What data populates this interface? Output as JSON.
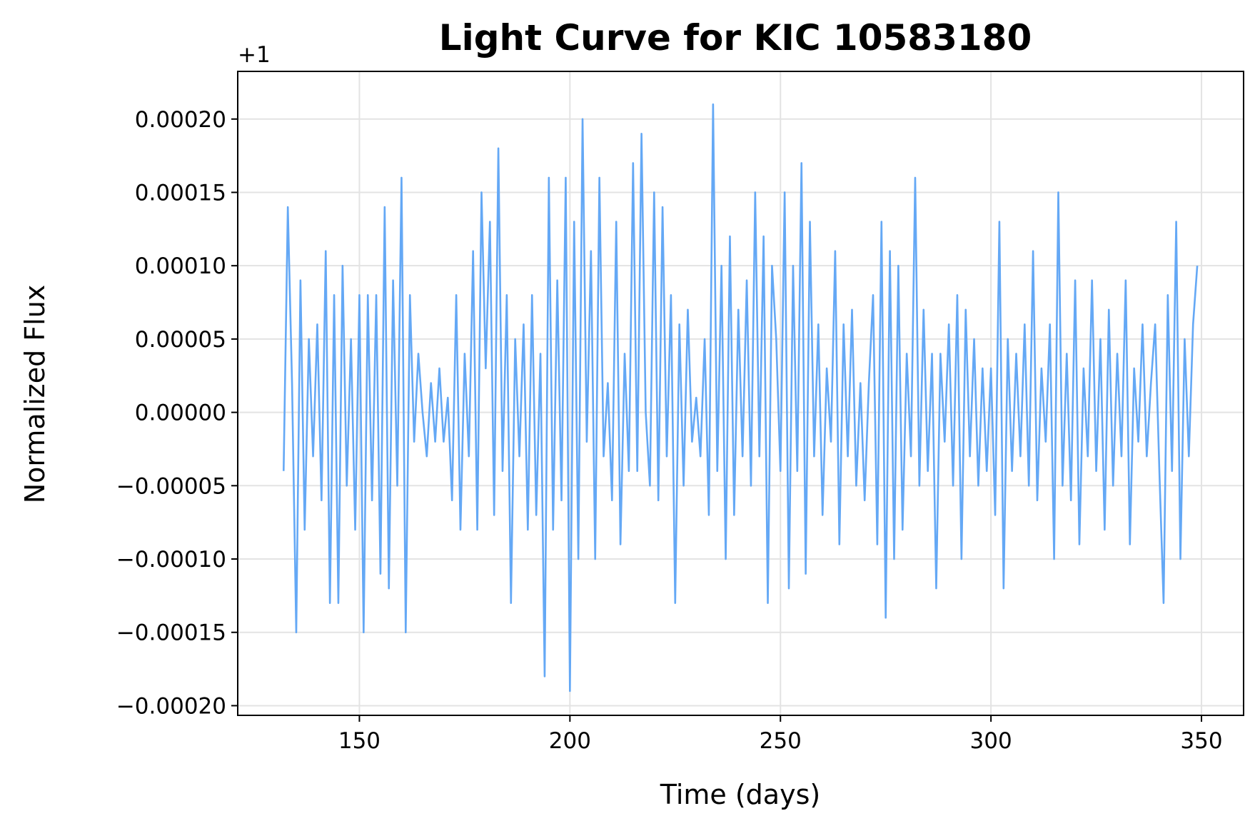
{
  "chart_data": {
    "type": "line",
    "title": "Light Curve for KIC 10583180",
    "x_label": "Time (days)",
    "y_label": "Normalized Flux",
    "y_offset_label": "+1",
    "grid": true,
    "xlim": [
      121.1,
      360
    ],
    "xticks": [
      150,
      200,
      250,
      300,
      350
    ],
    "ylim": [
      -0.0002066,
      0.0002325
    ],
    "yticks": [
      {
        "value": -0.0002,
        "label": "−0.00020"
      },
      {
        "value": -0.00015,
        "label": "−0.00015"
      },
      {
        "value": -0.0001,
        "label": "−0.00010"
      },
      {
        "value": -5e-05,
        "label": "−0.00005"
      },
      {
        "value": 0,
        "label": "0.00000"
      },
      {
        "value": 5e-05,
        "label": "0.00005"
      },
      {
        "value": 0.0001,
        "label": "0.00010"
      },
      {
        "value": 0.00015,
        "label": "0.00015"
      },
      {
        "value": 0.0002,
        "label": "0.00020"
      }
    ],
    "x": [
      132,
      133,
      134,
      135,
      136,
      137,
      138,
      139,
      140,
      141,
      142,
      143,
      144,
      145,
      146,
      147,
      148,
      149,
      150,
      151,
      152,
      153,
      154,
      155,
      156,
      157,
      158,
      159,
      160,
      161,
      162,
      163,
      164,
      165,
      166,
      167,
      168,
      169,
      170,
      171,
      172,
      173,
      174,
      175,
      176,
      177,
      178,
      179,
      180,
      181,
      182,
      183,
      184,
      185,
      186,
      187,
      188,
      189,
      190,
      191,
      192,
      193,
      194,
      195,
      196,
      197,
      198,
      199,
      200,
      201,
      202,
      203,
      204,
      205,
      206,
      207,
      208,
      209,
      210,
      211,
      212,
      213,
      214,
      215,
      216,
      217,
      218,
      219,
      220,
      221,
      222,
      223,
      224,
      225,
      226,
      227,
      228,
      229,
      230,
      231,
      232,
      233,
      234,
      235,
      236,
      237,
      238,
      239,
      240,
      241,
      242,
      243,
      244,
      245,
      246,
      247,
      248,
      249,
      250,
      251,
      252,
      253,
      254,
      255,
      256,
      257,
      258,
      259,
      260,
      261,
      262,
      263,
      264,
      265,
      266,
      267,
      268,
      269,
      270,
      271,
      272,
      273,
      274,
      275,
      276,
      277,
      278,
      279,
      280,
      281,
      282,
      283,
      284,
      285,
      286,
      287,
      288,
      289,
      290,
      291,
      292,
      293,
      294,
      295,
      296,
      297,
      298,
      299,
      300,
      301,
      302,
      303,
      304,
      305,
      306,
      307,
      308,
      309,
      310,
      311,
      312,
      313,
      314,
      315,
      316,
      317,
      318,
      319,
      320,
      321,
      322,
      323,
      324,
      325,
      326,
      327,
      328,
      329,
      330,
      331,
      332,
      333,
      334,
      335,
      336,
      337,
      338,
      339,
      340,
      341,
      342,
      343,
      344,
      345,
      346,
      347,
      348,
      349
    ],
    "series": [
      {
        "color": "#64a8f5",
        "values": [
          -4e-05,
          0.00014,
          2e-05,
          -0.00015,
          9e-05,
          -8e-05,
          5e-05,
          -3e-05,
          6e-05,
          -6e-05,
          0.00011,
          -0.00013,
          8e-05,
          -0.00013,
          0.0001,
          -5e-05,
          5e-05,
          -8e-05,
          8e-05,
          -0.00015,
          8e-05,
          -6e-05,
          8e-05,
          -0.00011,
          0.00014,
          -0.00012,
          9e-05,
          -5e-05,
          0.00016,
          -0.00015,
          8e-05,
          -2e-05,
          4e-05,
          0,
          -3e-05,
          2e-05,
          -2e-05,
          3e-05,
          -2e-05,
          1e-05,
          -6e-05,
          8e-05,
          -8e-05,
          4e-05,
          -3e-05,
          0.00011,
          -8e-05,
          0.00015,
          3e-05,
          0.00013,
          -7e-05,
          0.00018,
          -4e-05,
          8e-05,
          -0.00013,
          5e-05,
          -3e-05,
          6e-05,
          -8e-05,
          8e-05,
          -7e-05,
          4e-05,
          -0.00018,
          0.00016,
          -8e-05,
          9e-05,
          -6e-05,
          0.00016,
          -0.00019,
          0.00013,
          -0.0001,
          0.0002,
          -2e-05,
          0.00011,
          -0.0001,
          0.00016,
          -3e-05,
          2e-05,
          -6e-05,
          0.00013,
          -9e-05,
          4e-05,
          -4e-05,
          0.00017,
          -4e-05,
          0.00019,
          0,
          -5e-05,
          0.00015,
          -6e-05,
          0.00014,
          -3e-05,
          8e-05,
          -0.00013,
          6e-05,
          -5e-05,
          7e-05,
          -2e-05,
          1e-05,
          -3e-05,
          5e-05,
          -7e-05,
          0.00021,
          -4e-05,
          0.0001,
          -0.0001,
          0.00012,
          -7e-05,
          7e-05,
          -3e-05,
          9e-05,
          -5e-05,
          0.00015,
          -3e-05,
          0.00012,
          -0.00013,
          0.0001,
          5e-05,
          -4e-05,
          0.00015,
          -0.00012,
          0.0001,
          -4e-05,
          0.00017,
          -0.00011,
          0.00013,
          -3e-05,
          6e-05,
          -7e-05,
          3e-05,
          -2e-05,
          0.00011,
          -9e-05,
          6e-05,
          -3e-05,
          7e-05,
          -5e-05,
          2e-05,
          -6e-05,
          2e-05,
          8e-05,
          -9e-05,
          0.00013,
          -0.00014,
          0.00011,
          -0.0001,
          0.0001,
          -8e-05,
          4e-05,
          -3e-05,
          0.00016,
          -5e-05,
          7e-05,
          -4e-05,
          4e-05,
          -0.00012,
          4e-05,
          -2e-05,
          6e-05,
          -5e-05,
          8e-05,
          -0.0001,
          7e-05,
          -3e-05,
          5e-05,
          -5e-05,
          3e-05,
          -4e-05,
          3e-05,
          -7e-05,
          0.00013,
          -0.00012,
          5e-05,
          -4e-05,
          4e-05,
          -3e-05,
          6e-05,
          -5e-05,
          0.00011,
          -6e-05,
          3e-05,
          -2e-05,
          6e-05,
          -0.0001,
          0.00015,
          -5e-05,
          4e-05,
          -6e-05,
          9e-05,
          -9e-05,
          3e-05,
          -3e-05,
          9e-05,
          -4e-05,
          5e-05,
          -8e-05,
          7e-05,
          -5e-05,
          4e-05,
          -3e-05,
          9e-05,
          -9e-05,
          3e-05,
          -2e-05,
          6e-05,
          -3e-05,
          2e-05,
          6e-05,
          -4e-05,
          -0.00013,
          8e-05,
          -4e-05,
          0.00013,
          -0.0001,
          5e-05,
          -3e-05,
          6e-05,
          0.0001
        ]
      }
    ]
  }
}
